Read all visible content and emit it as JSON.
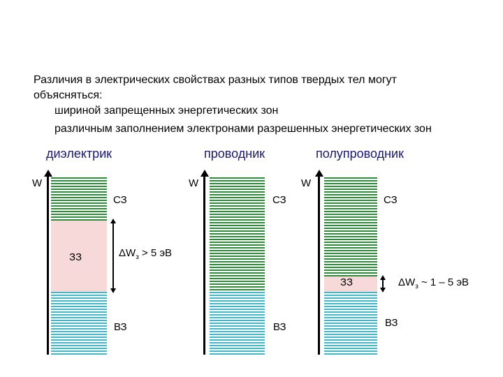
{
  "intro": {
    "line1": "Различия в электрических свойствах разных типов твердых тел могут",
    "line2": "объясняться:",
    "line3": "шириной запрещенных энергетических зон",
    "line4": "различным заполнением электронами разрешенных энергетических зон"
  },
  "dielectric": {
    "title": "диэлектрик",
    "axis_label": "W",
    "conduction_label": "СЗ",
    "forbidden_label": "ЗЗ",
    "valence_label": "ВЗ",
    "gap_prefix": "ΔW",
    "gap_sub": "з",
    "gap_suffix": " > 5 эВ"
  },
  "conductor": {
    "title": "проводник",
    "axis_label": "W",
    "conduction_label": "СЗ",
    "valence_label": "ВЗ"
  },
  "semiconductor": {
    "title": "полупроводник",
    "axis_label": "W",
    "conduction_label": "СЗ",
    "forbidden_label": "ЗЗ",
    "valence_label": "ВЗ",
    "gap_prefix": "ΔW",
    "gap_sub": "з",
    "gap_suffix": " ~ 1 – 5 эВ"
  },
  "colors": {
    "conduction_band": "#2e8b3a",
    "valence_band": "#3fb8c8",
    "forbidden_band": "#f8d9d9",
    "heading": "#1a1a6e"
  }
}
